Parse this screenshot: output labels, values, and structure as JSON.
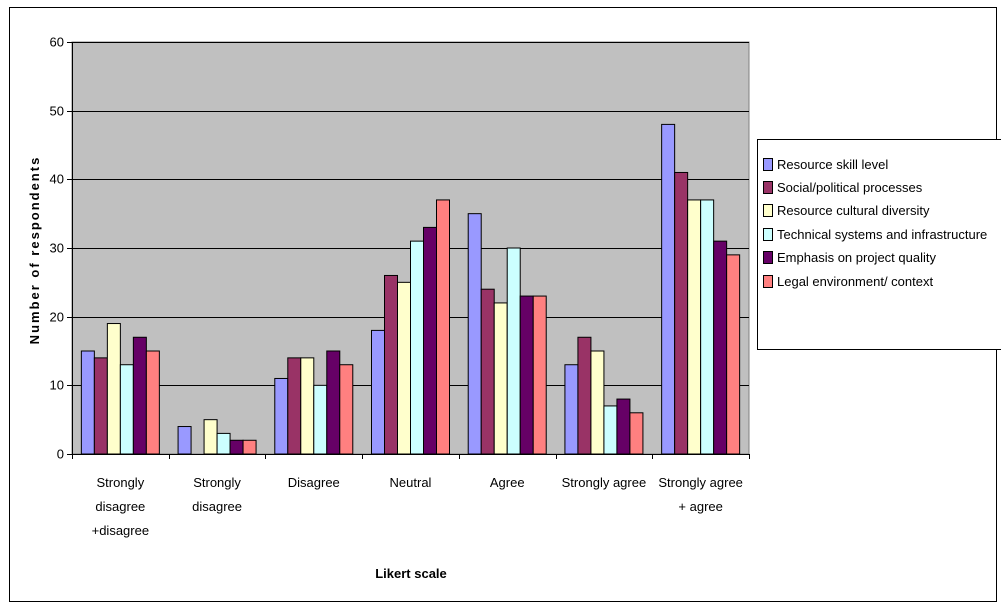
{
  "chart_data": {
    "type": "bar",
    "title": "",
    "xlabel": "Likert scale",
    "ylabel": "Number of respondents",
    "ylim": [
      0,
      60
    ],
    "yticks": [
      "0",
      "10",
      "20",
      "30",
      "40",
      "50",
      "60"
    ],
    "grid": true,
    "legend_position": "right",
    "plot_background": "#c0c0c0",
    "categories": [
      [
        "Strongly",
        "disagree",
        "+disagree"
      ],
      [
        "Strongly",
        "disagree"
      ],
      [
        "Disagree"
      ],
      [
        "Neutral"
      ],
      [
        "Agree"
      ],
      [
        "Strongly agree"
      ],
      [
        "Strongly agree",
        "+ agree"
      ]
    ],
    "series": [
      {
        "name": "Resource skill level",
        "color": "#9999ff",
        "values": [
          15,
          4,
          11,
          18,
          35,
          13,
          48
        ]
      },
      {
        "name": "Social/political processes",
        "color": "#993366",
        "values": [
          14,
          0,
          14,
          26,
          24,
          17,
          41
        ]
      },
      {
        "name": "Resource cultural diversity",
        "color": "#ffffcc",
        "values": [
          19,
          5,
          14,
          25,
          22,
          15,
          37
        ]
      },
      {
        "name": "Technical systems and infrastructure",
        "color": "#ccffff",
        "values": [
          13,
          3,
          10,
          31,
          30,
          7,
          37
        ]
      },
      {
        "name": "Emphasis on project quality",
        "color": "#660066",
        "values": [
          17,
          2,
          15,
          33,
          23,
          8,
          31
        ]
      },
      {
        "name": "Legal environment/ context",
        "color": "#ff8080",
        "values": [
          15,
          2,
          13,
          37,
          23,
          6,
          29
        ]
      }
    ]
  }
}
